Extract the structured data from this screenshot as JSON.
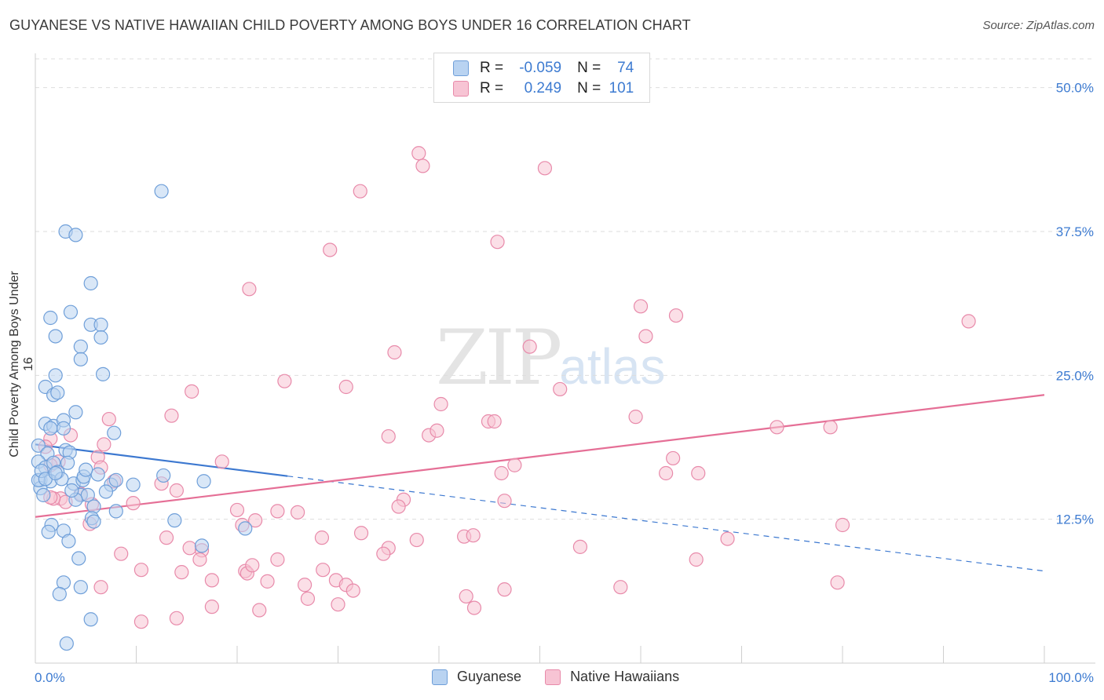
{
  "title": "GUYANESE VS NATIVE HAWAIIAN CHILD POVERTY AMONG BOYS UNDER 16 CORRELATION CHART",
  "source": "Source: ZipAtlas.com",
  "watermark": {
    "zip": "ZIP",
    "atlas": "atlas"
  },
  "legend_top": {
    "rows": [
      {
        "r_label": "R =",
        "r_value": "-0.059",
        "n_label": "N =",
        "n_value": "74"
      },
      {
        "r_label": "R =",
        "r_value": "0.249",
        "n_label": "N =",
        "n_value": "101"
      }
    ]
  },
  "legend_bottom": {
    "items": [
      "Guyanese",
      "Native Hawaiians"
    ]
  },
  "colors": {
    "blue_fill": "#b9d3f1",
    "blue_stroke": "#6f9fd9",
    "blue_line": "#3c78d0",
    "pink_fill": "#f7c4d4",
    "pink_stroke": "#e88aaa",
    "pink_line": "#e56f96",
    "grid": "#dddddd",
    "axis_text": "#3d7bd1"
  },
  "chart_data": {
    "type": "scatter",
    "title": "GUYANESE VS NATIVE HAWAIIAN CHILD POVERTY AMONG BOYS UNDER 16 CORRELATION CHART",
    "xlabel": "",
    "ylabel": "Child Poverty Among Boys Under 16",
    "xlim": [
      0,
      100
    ],
    "ylim": [
      0,
      52.5
    ],
    "x_tick_labels": [
      "0.0%",
      "100.0%"
    ],
    "y_ticks": [
      12.5,
      25.0,
      37.5,
      50.0
    ],
    "y_tick_labels": [
      "12.5%",
      "25.0%",
      "37.5%",
      "50.0%"
    ],
    "grid": true,
    "legend_position": "top-center",
    "series": [
      {
        "name": "Guyanese",
        "r": -0.059,
        "n": 74,
        "trend": {
          "x0": 0,
          "y0": 19.0,
          "x1": 100,
          "y1": 8.0,
          "solid_until": 25
        },
        "points": [
          [
            12.5,
            41.0
          ],
          [
            3.0,
            37.5
          ],
          [
            4.0,
            37.2
          ],
          [
            5.5,
            33.0
          ],
          [
            1.5,
            30.0
          ],
          [
            3.5,
            30.5
          ],
          [
            5.5,
            29.4
          ],
          [
            6.5,
            29.4
          ],
          [
            2.0,
            28.4
          ],
          [
            4.5,
            27.5
          ],
          [
            6.5,
            28.3
          ],
          [
            4.5,
            26.4
          ],
          [
            2.0,
            25.0
          ],
          [
            6.7,
            25.1
          ],
          [
            1.0,
            24.0
          ],
          [
            1.8,
            23.3
          ],
          [
            2.2,
            23.5
          ],
          [
            4.0,
            21.8
          ],
          [
            1.0,
            20.8
          ],
          [
            1.8,
            20.6
          ],
          [
            2.8,
            21.1
          ],
          [
            2.8,
            20.4
          ],
          [
            7.8,
            20.0
          ],
          [
            1.5,
            20.4
          ],
          [
            0.3,
            18.9
          ],
          [
            1.2,
            18.2
          ],
          [
            3.0,
            18.5
          ],
          [
            3.4,
            18.3
          ],
          [
            0.3,
            17.5
          ],
          [
            1.0,
            17.0
          ],
          [
            1.8,
            17.4
          ],
          [
            3.2,
            17.4
          ],
          [
            2.2,
            16.6
          ],
          [
            6.2,
            16.4
          ],
          [
            0.5,
            15.9
          ],
          [
            1.5,
            15.8
          ],
          [
            3.8,
            15.6
          ],
          [
            4.7,
            15.9
          ],
          [
            12.7,
            16.3
          ],
          [
            16.7,
            15.8
          ],
          [
            0.5,
            15.2
          ],
          [
            7.5,
            15.5
          ],
          [
            9.7,
            15.5
          ],
          [
            0.8,
            14.6
          ],
          [
            4.5,
            14.6
          ],
          [
            5.2,
            14.6
          ],
          [
            7.0,
            14.9
          ],
          [
            4.0,
            14.2
          ],
          [
            5.8,
            13.6
          ],
          [
            8.0,
            13.2
          ],
          [
            5.6,
            12.6
          ],
          [
            5.8,
            12.3
          ],
          [
            13.8,
            12.4
          ],
          [
            1.6,
            12.0
          ],
          [
            1.3,
            11.4
          ],
          [
            2.8,
            11.5
          ],
          [
            20.8,
            11.7
          ],
          [
            3.3,
            10.6
          ],
          [
            16.5,
            10.2
          ],
          [
            4.3,
            9.1
          ],
          [
            2.8,
            7.0
          ],
          [
            4.5,
            6.6
          ],
          [
            2.4,
            6.0
          ],
          [
            5.5,
            3.8
          ],
          [
            3.1,
            1.7
          ],
          [
            0.3,
            15.9
          ],
          [
            0.6,
            16.7
          ],
          [
            2.6,
            16.0
          ],
          [
            4.8,
            16.2
          ],
          [
            1.0,
            16.0
          ],
          [
            3.6,
            15.0
          ],
          [
            5.0,
            16.8
          ],
          [
            8.0,
            15.9
          ],
          [
            2.0,
            16.5
          ]
        ]
      },
      {
        "name": "Native Hawaiians",
        "r": 0.249,
        "n": 101,
        "trend": {
          "x0": 0,
          "y0": 12.7,
          "x1": 100,
          "y1": 23.3
        },
        "points": [
          [
            38.0,
            44.3
          ],
          [
            38.4,
            43.2
          ],
          [
            50.5,
            43.0
          ],
          [
            32.2,
            41.0
          ],
          [
            29.2,
            35.9
          ],
          [
            45.8,
            36.6
          ],
          [
            21.2,
            32.5
          ],
          [
            60.0,
            31.0
          ],
          [
            63.5,
            30.2
          ],
          [
            92.5,
            29.7
          ],
          [
            60.5,
            28.4
          ],
          [
            49.0,
            27.5
          ],
          [
            35.6,
            27.0
          ],
          [
            24.7,
            24.5
          ],
          [
            30.8,
            24.0
          ],
          [
            52.0,
            23.8
          ],
          [
            15.5,
            23.6
          ],
          [
            40.2,
            22.5
          ],
          [
            13.5,
            21.5
          ],
          [
            7.3,
            21.2
          ],
          [
            44.9,
            21.0
          ],
          [
            45.5,
            21.0
          ],
          [
            59.5,
            21.4
          ],
          [
            73.5,
            20.5
          ],
          [
            78.8,
            20.5
          ],
          [
            1.5,
            19.5
          ],
          [
            3.5,
            19.8
          ],
          [
            35.0,
            19.7
          ],
          [
            39.0,
            19.8
          ],
          [
            39.8,
            20.2
          ],
          [
            6.8,
            19.0
          ],
          [
            1.0,
            18.8
          ],
          [
            6.2,
            17.9
          ],
          [
            2.3,
            17.5
          ],
          [
            6.5,
            17.0
          ],
          [
            18.5,
            17.5
          ],
          [
            47.5,
            17.2
          ],
          [
            63.2,
            17.8
          ],
          [
            1.5,
            17.2
          ],
          [
            46.2,
            16.5
          ],
          [
            62.5,
            16.5
          ],
          [
            65.7,
            16.5
          ],
          [
            12.5,
            15.6
          ],
          [
            7.8,
            15.8
          ],
          [
            14.0,
            15.0
          ],
          [
            2.5,
            14.3
          ],
          [
            4.5,
            14.7
          ],
          [
            3.0,
            14.0
          ],
          [
            1.8,
            14.3
          ],
          [
            1.5,
            14.4
          ],
          [
            36.5,
            14.2
          ],
          [
            46.5,
            14.1
          ],
          [
            9.7,
            13.9
          ],
          [
            5.6,
            13.8
          ],
          [
            36.0,
            13.6
          ],
          [
            20.0,
            13.3
          ],
          [
            24.0,
            13.2
          ],
          [
            26.0,
            13.1
          ],
          [
            21.8,
            12.4
          ],
          [
            20.5,
            12.0
          ],
          [
            5.4,
            12.1
          ],
          [
            80.0,
            12.0
          ],
          [
            32.3,
            11.3
          ],
          [
            42.5,
            11.0
          ],
          [
            43.4,
            11.1
          ],
          [
            28.4,
            10.9
          ],
          [
            13.0,
            10.9
          ],
          [
            37.8,
            10.7
          ],
          [
            35.0,
            10.0
          ],
          [
            68.6,
            10.8
          ],
          [
            54.0,
            10.1
          ],
          [
            34.5,
            9.5
          ],
          [
            15.3,
            10.0
          ],
          [
            16.5,
            9.8
          ],
          [
            8.5,
            9.5
          ],
          [
            16.3,
            9.0
          ],
          [
            24.0,
            9.0
          ],
          [
            65.5,
            9.0
          ],
          [
            10.5,
            8.1
          ],
          [
            20.8,
            8.0
          ],
          [
            21.0,
            7.8
          ],
          [
            21.5,
            8.5
          ],
          [
            28.5,
            8.1
          ],
          [
            14.5,
            7.9
          ],
          [
            17.5,
            7.2
          ],
          [
            29.8,
            7.2
          ],
          [
            23.0,
            7.1
          ],
          [
            26.7,
            6.8
          ],
          [
            30.8,
            6.8
          ],
          [
            6.5,
            6.6
          ],
          [
            46.5,
            6.4
          ],
          [
            58.0,
            6.6
          ],
          [
            31.5,
            6.3
          ],
          [
            42.7,
            5.8
          ],
          [
            27.0,
            5.6
          ],
          [
            30.0,
            5.1
          ],
          [
            17.5,
            4.9
          ],
          [
            43.5,
            4.8
          ],
          [
            22.2,
            4.6
          ],
          [
            14.0,
            3.9
          ],
          [
            10.5,
            3.6
          ],
          [
            79.5,
            7.0
          ]
        ]
      }
    ]
  }
}
